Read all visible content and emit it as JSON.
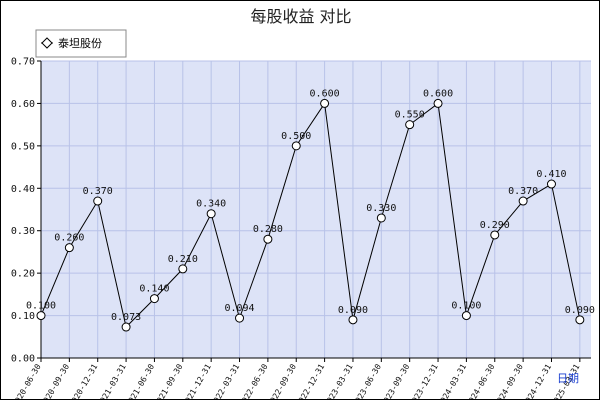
{
  "chart_data": {
    "type": "line",
    "title": "每股收益  对比",
    "xlabel": "日期",
    "ylabel": "",
    "ylim": [
      0,
      0.7
    ],
    "y_ticks": [
      "0.00",
      "0.10",
      "0.20",
      "0.30",
      "0.40",
      "0.50",
      "0.60",
      "0.70"
    ],
    "grid": true,
    "legend_position": "top-left",
    "categories": [
      "2020-06-30",
      "2020-09-30",
      "2020-12-31",
      "2021-03-31",
      "2021-06-30",
      "2021-09-30",
      "2021-12-31",
      "2022-03-31",
      "2022-06-30",
      "2022-09-30",
      "2022-12-31",
      "2023-03-31",
      "2023-06-30",
      "2023-09-30",
      "2023-12-31",
      "2024-03-31",
      "2024-06-30",
      "2024-09-30",
      "2024-12-31",
      "2025-03-31"
    ],
    "series": [
      {
        "name": "泰坦股份",
        "values": [
          0.1,
          0.26,
          0.37,
          0.073,
          0.14,
          0.21,
          0.34,
          0.094,
          0.28,
          0.5,
          0.6,
          0.09,
          0.33,
          0.55,
          0.6,
          0.1,
          0.29,
          0.37,
          0.41,
          0.09
        ],
        "labels": [
          "0.100",
          "0.260",
          "0.370",
          "0.073",
          "0.140",
          "0.210",
          "0.340",
          "0.094",
          "0.280",
          "0.500",
          "0.600",
          "0.090",
          "0.330",
          "0.550",
          "0.600",
          "0.100",
          "0.290",
          "0.370",
          "0.410",
          "0.090"
        ]
      }
    ],
    "colors": {
      "plot_bg": "#dde3f7",
      "grid": "#b8c2e8",
      "line": "#000000",
      "marker_fill": "#ffffff",
      "axis_unit": "#1a3fd0"
    }
  }
}
